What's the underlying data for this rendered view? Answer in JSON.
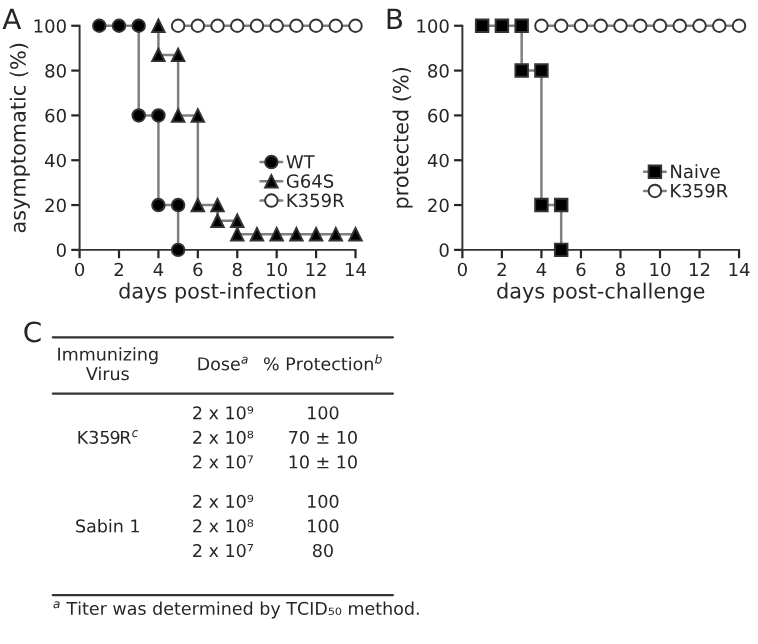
{
  "chart_data": [
    {
      "type": "line",
      "title": "A",
      "xlabel": "days post-infection",
      "ylabel": "asymptomatic (%)",
      "xlim": [
        0,
        14
      ],
      "xticks": [
        0,
        2,
        4,
        6,
        8,
        10,
        12,
        14
      ],
      "ylim": [
        0,
        100
      ],
      "yticks": [
        0,
        20,
        40,
        60,
        80,
        100
      ],
      "legend": "right",
      "grid": false,
      "series": [
        {
          "name": "WT",
          "color": "#000000",
          "marker": "circle",
          "x": [
            1,
            2,
            3,
            3,
            4,
            4,
            5,
            5
          ],
          "values": [
            100,
            100,
            100,
            60,
            60,
            20,
            20,
            0
          ]
        },
        {
          "name": "G64S",
          "color": "#000000",
          "marker": "triangle",
          "x": [
            4,
            4,
            5,
            5,
            6,
            6,
            7,
            7,
            8,
            8,
            9,
            10,
            11,
            12,
            13,
            14
          ],
          "values": [
            100,
            87,
            87,
            60,
            60,
            20,
            20,
            13,
            13,
            7,
            7,
            7,
            7,
            7,
            7,
            7
          ]
        },
        {
          "name": "K359R",
          "color": "#ffffff",
          "marker": "circle",
          "x": [
            5,
            6,
            7,
            8,
            9,
            10,
            11,
            12,
            13,
            14
          ],
          "values": [
            100,
            100,
            100,
            100,
            100,
            100,
            100,
            100,
            100,
            100
          ]
        }
      ]
    },
    {
      "type": "line",
      "title": "B",
      "xlabel": "days post-challenge",
      "ylabel": "protected (%)",
      "xlim": [
        0,
        14
      ],
      "xticks": [
        0,
        2,
        4,
        6,
        8,
        10,
        12,
        14
      ],
      "ylim": [
        0,
        100
      ],
      "yticks": [
        0,
        20,
        40,
        60,
        80,
        100
      ],
      "legend": "right",
      "grid": false,
      "series": [
        {
          "name": "Naive",
          "color": "#000000",
          "marker": "square",
          "x": [
            1,
            2,
            3,
            3,
            4,
            4,
            5,
            5
          ],
          "values": [
            100,
            100,
            100,
            80,
            80,
            20,
            20,
            0
          ]
        },
        {
          "name": "K359R",
          "color": "#ffffff",
          "marker": "circle",
          "x": [
            4,
            5,
            6,
            7,
            8,
            9,
            10,
            11,
            12,
            13,
            14
          ],
          "values": [
            100,
            100,
            100,
            100,
            100,
            100,
            100,
            100,
            100,
            100,
            100
          ]
        }
      ]
    },
    {
      "type": "other",
      "title": "C",
      "annotations": [
        "Immunizing\nVirus",
        "Dose$^{a}$",
        "% Protection$^{b}$",
        "K359R$^{c}$",
        "2 x 10⁹",
        "100",
        "2 x 10⁸",
        "70 ± 10",
        "2 x 10⁷",
        "10 ± 10",
        "Sabin 1",
        "2 x 10⁹",
        "100",
        "2 x 10⁸",
        "100",
        "2 x 10⁷",
        "80",
        "$^{a}$ Titer was determined by TCID₅₀ method."
      ]
    }
  ]
}
